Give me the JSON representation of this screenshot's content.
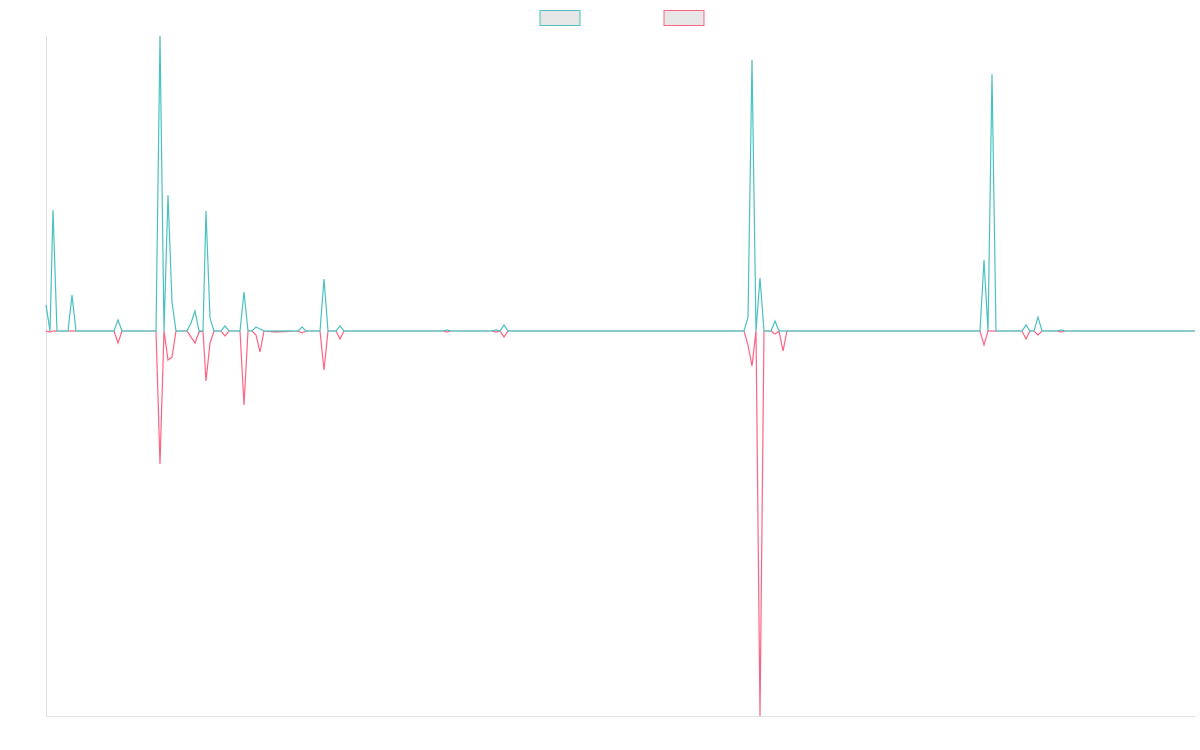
{
  "chart_data": {
    "type": "line",
    "x": [
      0,
      4,
      7,
      11,
      22,
      26,
      30,
      68,
      72,
      76,
      110,
      114,
      118,
      122,
      126,
      130,
      141,
      145,
      149,
      153,
      157,
      160,
      164,
      168,
      175,
      179,
      183,
      194,
      198,
      202,
      206,
      210,
      214,
      218,
      229,
      252,
      256,
      260,
      274,
      278,
      282,
      290,
      294,
      298,
      397,
      401,
      405,
      446,
      450,
      454,
      458,
      462,
      698,
      702,
      706,
      710,
      714,
      718,
      725,
      729,
      733,
      737,
      741,
      934,
      938,
      942,
      946,
      950,
      976,
      980,
      984,
      988,
      992,
      996,
      1011,
      1015,
      1019,
      1149
    ],
    "series": [
      {
        "color": "#4bc0c0",
        "values": [
          26,
          0,
          121,
          0,
          0,
          36,
          0,
          0,
          11,
          0,
          0,
          295,
          0,
          136,
          29,
          0,
          0,
          8,
          20,
          0,
          0,
          120,
          13,
          0,
          0,
          5,
          0,
          0,
          39,
          0,
          0,
          4,
          2,
          0,
          0,
          0,
          4,
          0,
          0,
          52,
          0,
          0,
          5,
          0,
          0,
          1,
          0,
          0,
          1,
          0,
          6,
          0,
          0,
          14,
          271,
          0,
          53,
          0,
          0,
          10,
          0,
          0,
          0,
          0,
          71,
          0,
          257,
          0,
          0,
          6,
          0,
          0,
          14,
          0,
          0,
          1,
          0,
          0
        ]
      },
      {
        "color": "#ff6384",
        "values": [
          0,
          -1,
          0,
          0,
          0,
          0,
          0,
          0,
          -12,
          0,
          0,
          -133,
          0,
          -29,
          -26,
          0,
          0,
          -6,
          -12,
          -1,
          0,
          -50,
          -12,
          0,
          0,
          -5,
          0,
          0,
          -74,
          0,
          0,
          -4,
          -21,
          0,
          -1,
          0,
          -2,
          0,
          0,
          -39,
          0,
          0,
          -8,
          0,
          0,
          -1,
          0,
          0,
          -1,
          0,
          -6,
          0,
          0,
          -14,
          -35,
          0,
          -385,
          0,
          0,
          -3,
          0,
          -20,
          0,
          0,
          -14,
          0,
          0,
          0,
          0,
          -8,
          0,
          0,
          -4,
          0,
          0,
          -1,
          0,
          0
        ]
      }
    ],
    "xlim": [
      0,
      1149
    ],
    "ylim": [
      -385,
      295
    ]
  }
}
